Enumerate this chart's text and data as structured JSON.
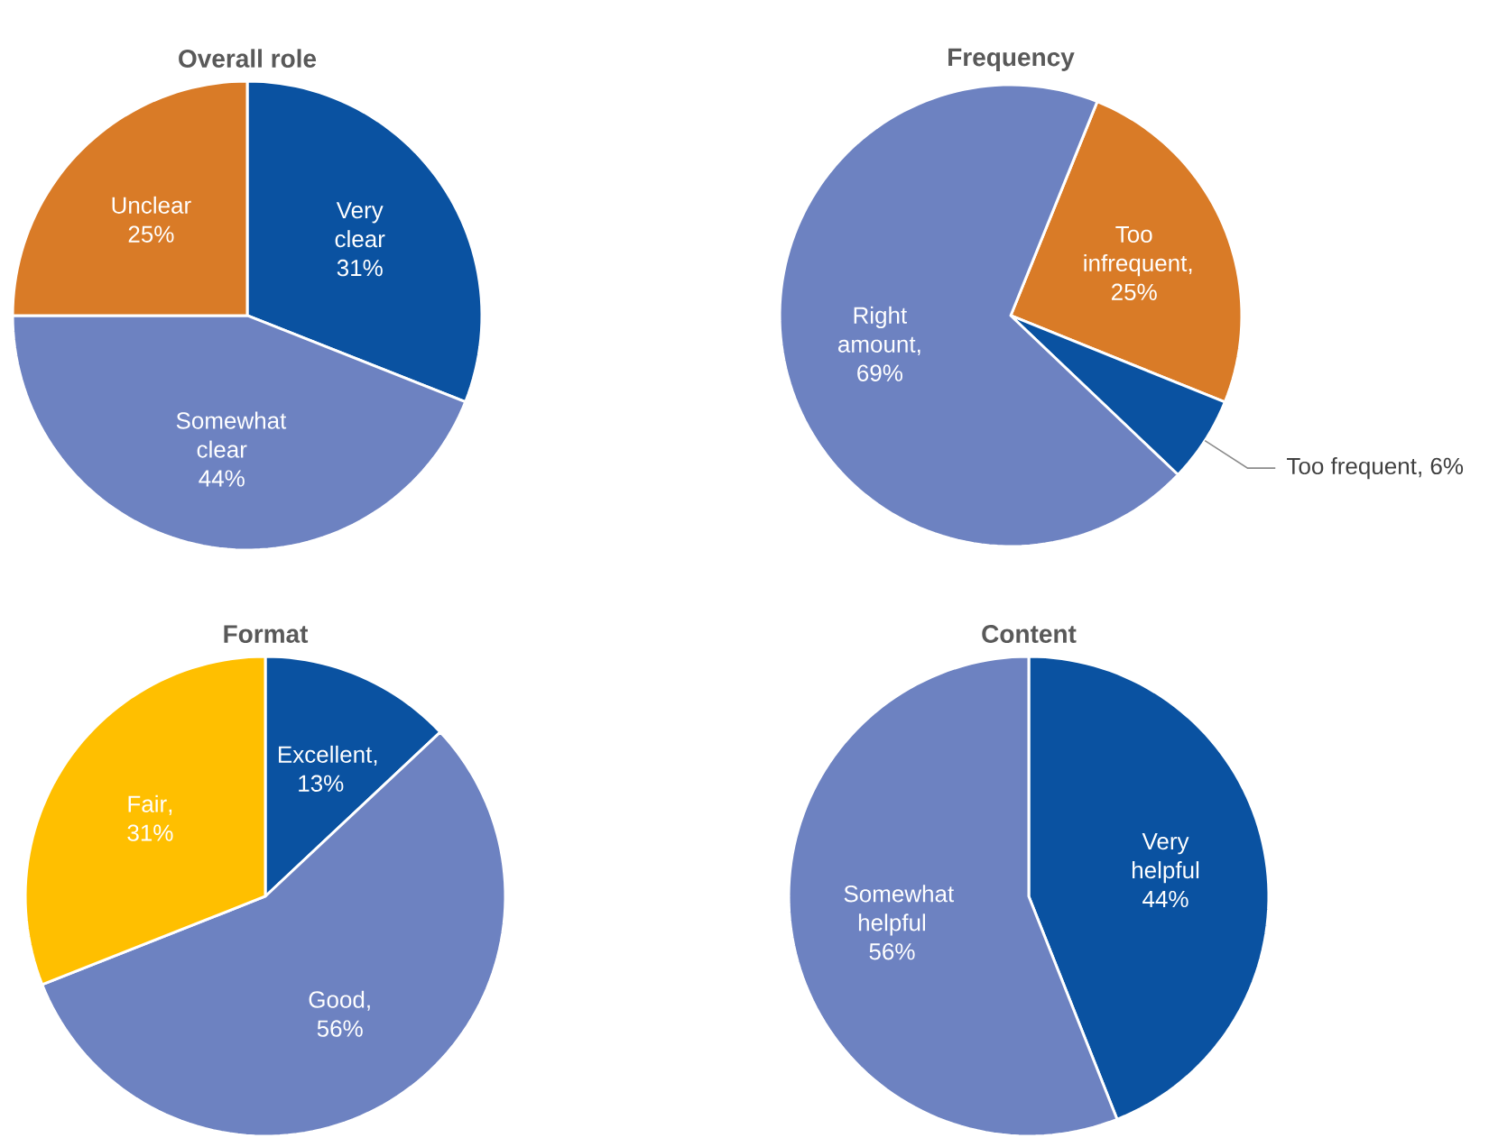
{
  "chart_data": [
    {
      "type": "pie",
      "title": "Overall role",
      "categories": [
        "Very clear",
        "Somewhat clear",
        "Unclear"
      ],
      "values": [
        31,
        44,
        25
      ],
      "value_labels": [
        "31%",
        "44%",
        "25%"
      ],
      "colors": [
        "#0a52a1",
        "#6d82c1",
        "#d97b27"
      ]
    },
    {
      "type": "pie",
      "title": "Frequency",
      "categories": [
        "Too infrequent",
        "Too frequent",
        "Right amount"
      ],
      "values": [
        25,
        6,
        69
      ],
      "value_labels": [
        ", 25%",
        ", 6%",
        ", 69%"
      ],
      "colors": [
        "#d97b27",
        "#0a52a1",
        "#6d82c1"
      ]
    },
    {
      "type": "pie",
      "title": "Format",
      "categories": [
        "Excellent",
        "Good",
        "Fair"
      ],
      "values": [
        13,
        56,
        31
      ],
      "value_labels": [
        ", 13%",
        ", 56%",
        ", 31%"
      ],
      "colors": [
        "#0a52a1",
        "#6d82c1",
        "#ffbf00"
      ]
    },
    {
      "type": "pie",
      "title": "Content",
      "categories": [
        "Very helpful",
        "Somewhat helpful"
      ],
      "values": [
        44,
        56
      ],
      "value_labels": [
        "44%",
        "56%"
      ],
      "colors": [
        "#0a52a1",
        "#6d82c1"
      ]
    }
  ]
}
